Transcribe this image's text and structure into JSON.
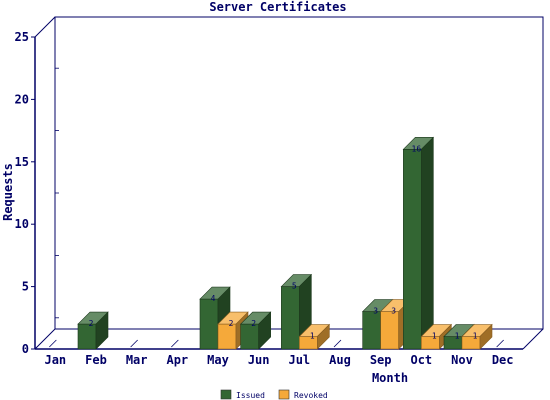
{
  "chart_data": {
    "type": "bar",
    "title": "Server Certificates",
    "xlabel": "Month",
    "ylabel": "Requests",
    "categories": [
      "Jan",
      "Feb",
      "Mar",
      "Apr",
      "May",
      "Jun",
      "Jul",
      "Aug",
      "Sep",
      "Oct",
      "Nov",
      "Dec"
    ],
    "series": [
      {
        "name": "Issued",
        "color": "#336633",
        "values": [
          0,
          2,
          0,
          0,
          4,
          2,
          5,
          0,
          3,
          16,
          1,
          0
        ]
      },
      {
        "name": "Revoked",
        "color": "#f5a93a",
        "values": [
          0,
          0,
          0,
          0,
          2,
          0,
          1,
          0,
          3,
          1,
          1,
          0
        ]
      }
    ],
    "ylim": [
      0,
      25
    ],
    "yticks": [
      0,
      5,
      10,
      15,
      20,
      25
    ],
    "grid": false,
    "legend": "bottom"
  }
}
